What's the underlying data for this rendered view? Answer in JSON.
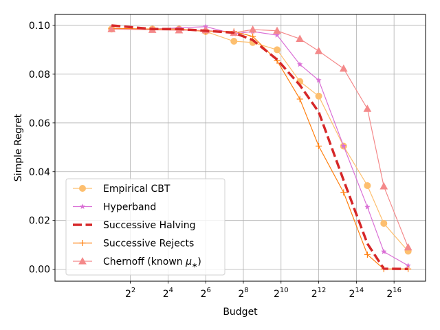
{
  "chart_data": {
    "type": "line",
    "xlabel": "Budget",
    "ylabel": "Simple Regret",
    "x_scale": "log2",
    "xlim": [
      0.25,
      209000
    ],
    "ylim": [
      -0.0049,
      0.1045
    ],
    "grid": true,
    "legend_position": "lower-left",
    "x_ticks": [
      {
        "value": 4,
        "base": "2",
        "exp": "2"
      },
      {
        "value": 16,
        "base": "2",
        "exp": "4"
      },
      {
        "value": 64,
        "base": "2",
        "exp": "6"
      },
      {
        "value": 256,
        "base": "2",
        "exp": "8"
      },
      {
        "value": 1024,
        "base": "2",
        "exp": "10"
      },
      {
        "value": 4096,
        "base": "2",
        "exp": "12"
      },
      {
        "value": 16384,
        "base": "2",
        "exp": "14"
      },
      {
        "value": 65536,
        "base": "2",
        "exp": "16"
      }
    ],
    "y_ticks": [
      {
        "value": 0.0,
        "label": "0.00"
      },
      {
        "value": 0.02,
        "label": "0.02"
      },
      {
        "value": 0.04,
        "label": "0.04"
      },
      {
        "value": 0.06,
        "label": "0.06"
      },
      {
        "value": 0.08,
        "label": "0.08"
      },
      {
        "value": 0.1,
        "label": "0.10"
      }
    ],
    "series": [
      {
        "name": "Empirical CBT",
        "color": "#fdbf6f",
        "marker": "circle",
        "line_style": "solid",
        "x": [
          2,
          9,
          24,
          64,
          181,
          362,
          886,
          2048,
          4096,
          10240,
          24576,
          45000,
          110000
        ],
        "y": [
          0.0985,
          0.0985,
          0.0985,
          0.0975,
          0.0935,
          0.093,
          0.09,
          0.077,
          0.071,
          0.0505,
          0.0343,
          0.0188,
          0.0074
        ]
      },
      {
        "name": "Hyperband",
        "color": "#da70d6",
        "marker": "star",
        "line_style": "solid",
        "x": [
          2,
          9,
          24,
          64,
          181,
          362,
          886,
          2048,
          4096,
          10240,
          24576,
          45000,
          110000
        ],
        "y": [
          0.0985,
          0.0985,
          0.099,
          0.0995,
          0.0965,
          0.0975,
          0.096,
          0.084,
          0.0775,
          0.0505,
          0.0255,
          0.0072,
          0.0015
        ]
      },
      {
        "name": "Successive Halving",
        "color": "#d62728",
        "marker": "none",
        "line_style": "dashed",
        "x": [
          2,
          9,
          24,
          64,
          181,
          362,
          886,
          2048,
          4096,
          10240,
          24576,
          45000,
          110000
        ],
        "y": [
          0.1,
          0.0985,
          0.0985,
          0.0978,
          0.097,
          0.094,
          0.086,
          0.0755,
          0.0645,
          0.0365,
          0.0105,
          0.0002,
          0.0001
        ]
      },
      {
        "name": "Successive Rejects",
        "color": "#ff7f0e",
        "marker": "plus",
        "line_style": "solid",
        "x": [
          2,
          9,
          24,
          64,
          181,
          362,
          886,
          2048,
          4096,
          10240,
          24576,
          45000,
          110000
        ],
        "y": [
          0.0988,
          0.0985,
          0.0985,
          0.0975,
          0.0975,
          0.0955,
          0.0855,
          0.0698,
          0.0505,
          0.0315,
          0.006,
          0.0001,
          0.0001
        ]
      },
      {
        "name": "Chernoff (known ",
        "name_mu": "μ",
        "name_sub": "∗",
        "name_end": ")",
        "color": "#f4898a",
        "marker": "triangle",
        "line_style": "solid",
        "x": [
          2,
          9,
          24,
          64,
          181,
          362,
          886,
          2048,
          4096,
          10240,
          24576,
          45000,
          110000
        ],
        "y": [
          0.0985,
          0.0982,
          0.098,
          0.098,
          0.097,
          0.0983,
          0.0978,
          0.0945,
          0.0895,
          0.0823,
          0.0658,
          0.034,
          0.009
        ]
      }
    ]
  }
}
